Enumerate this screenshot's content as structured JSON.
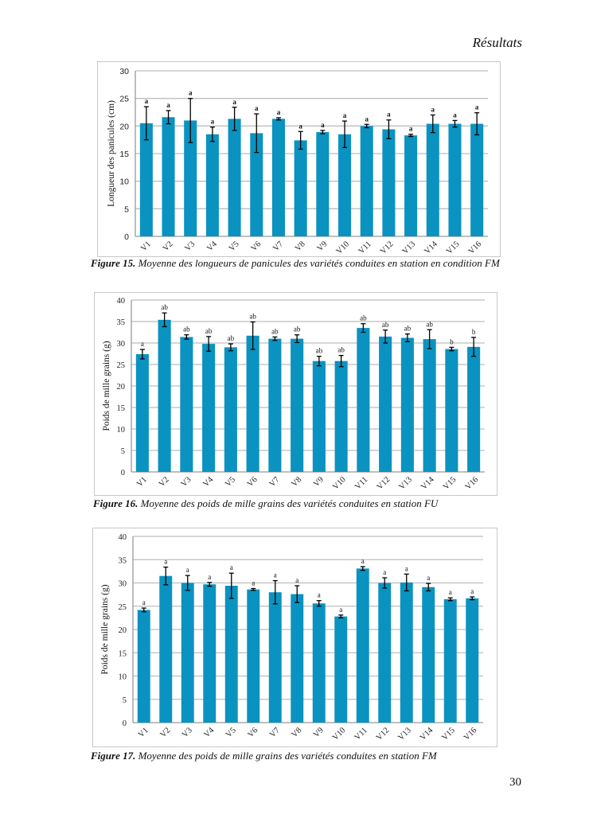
{
  "header": {
    "section": "Résultats"
  },
  "page_number": "30",
  "colors": {
    "bar": "#0A93C0",
    "grid": "#BEBEBE",
    "error_bar": "#000000"
  },
  "captions": [
    {
      "label": "Figure 15.",
      "text": " Moyenne des longueurs de panicules des variétés conduites en station en condition FM"
    },
    {
      "label": "Figure 16.",
      "text": " Moyenne des poids de mille grains des variétés conduites en station FU"
    },
    {
      "label": "Figure 17.",
      "text": " Moyenne des poids de mille grains des variétés conduites en station FM"
    }
  ],
  "chart_data": [
    {
      "type": "bar",
      "title": "",
      "xlabel": "",
      "ylabel": "Longueur des panicules (cm)",
      "ylim": [
        0,
        30
      ],
      "yticks": [
        0,
        5,
        10,
        15,
        20,
        25,
        30
      ],
      "grid": true,
      "categories": [
        "V1",
        "V2",
        "V3",
        "V4",
        "V5",
        "V6",
        "V7",
        "V8",
        "V9",
        "V10",
        "V11",
        "V12",
        "V13",
        "V14",
        "V15",
        "V16"
      ],
      "values": [
        20.5,
        21.6,
        21.0,
        18.5,
        21.3,
        18.7,
        21.3,
        17.4,
        18.9,
        18.5,
        20.0,
        19.4,
        18.3,
        20.4,
        20.4,
        20.4
      ],
      "errors": [
        3.0,
        1.2,
        4.0,
        1.3,
        2.1,
        3.5,
        0.2,
        1.6,
        0.3,
        2.4,
        0.3,
        1.7,
        0.2,
        1.6,
        0.6,
        2.0
      ],
      "annotations": [
        "a",
        "a",
        "a",
        "a",
        "a",
        "a",
        "a",
        "a",
        "a",
        "a",
        "a",
        "a",
        "a",
        "a",
        "a",
        "a"
      ]
    },
    {
      "type": "bar",
      "title": "",
      "xlabel": "",
      "ylabel": "Poids de mille grains (g)",
      "ylim": [
        0,
        40
      ],
      "yticks": [
        0,
        5,
        10,
        15,
        20,
        25,
        30,
        35,
        40
      ],
      "grid": true,
      "categories": [
        "V1",
        "V2",
        "V3",
        "V4",
        "V5",
        "V6",
        "V7",
        "V8",
        "V9",
        "V10",
        "V11",
        "V12",
        "V13",
        "V14",
        "V15",
        "V16"
      ],
      "values": [
        27.4,
        35.4,
        31.4,
        29.8,
        29.0,
        31.7,
        31.0,
        31.0,
        25.8,
        25.8,
        33.5,
        31.5,
        31.2,
        30.9,
        28.6,
        29.1
      ],
      "errors": [
        1.1,
        1.6,
        0.5,
        1.7,
        0.8,
        3.2,
        0.4,
        0.9,
        1.1,
        1.3,
        1.0,
        1.5,
        0.9,
        2.2,
        0.4,
        2.2
      ],
      "annotations": [
        "a",
        "ab",
        "ab",
        "ab",
        "ab",
        "ab",
        "ab",
        "ab",
        "ab",
        "ab",
        "ab",
        "ab",
        "ab",
        "ab",
        "b",
        "b"
      ]
    },
    {
      "type": "bar",
      "title": "",
      "xlabel": "",
      "ylabel": "Poids de mille grains (g)",
      "ylim": [
        0,
        40
      ],
      "yticks": [
        0,
        5,
        10,
        15,
        20,
        25,
        30,
        35,
        40
      ],
      "grid": true,
      "categories": [
        "V1",
        "V2",
        "V3",
        "V4",
        "V5",
        "V6",
        "V7",
        "V8",
        "V9",
        "V10",
        "V11",
        "V12",
        "V13",
        "V14",
        "V15",
        "V16"
      ],
      "values": [
        24.2,
        31.5,
        30.0,
        29.7,
        29.4,
        28.6,
        28.0,
        27.6,
        25.6,
        22.8,
        33.1,
        30.0,
        30.1,
        29.1,
        26.5,
        26.7
      ],
      "errors": [
        0.4,
        1.9,
        1.6,
        0.4,
        2.7,
        0.2,
        2.5,
        1.8,
        0.6,
        0.3,
        0.4,
        1.1,
        1.8,
        0.8,
        0.3,
        0.3
      ],
      "annotations": [
        "a",
        "a",
        "a",
        "a",
        "a",
        "a",
        "a",
        "a",
        "a",
        "a",
        "a",
        "a",
        "a",
        "a",
        "a",
        "a"
      ]
    }
  ]
}
